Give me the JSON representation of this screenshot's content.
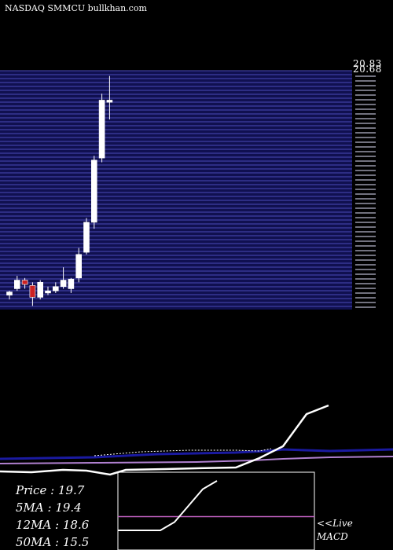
{
  "header": {
    "title": "NASDAQ SMMCU bullkhan.com"
  },
  "price_labels": {
    "top1": "20.83",
    "top2": "20.68"
  },
  "stats": {
    "price": "Price   :  19.7",
    "ma5": "5MA : 19.4",
    "ma12": "12MA : 18.6",
    "ma50": "50MA : 15.5"
  },
  "macd_panel": {
    "live": "<<Live",
    "label": "MACD"
  },
  "colors": {
    "background": "#000000",
    "band": "#101050",
    "band_line": "#4a4ab8",
    "up_candle": "#ffffff",
    "down_candle": "#cc2222",
    "ma_blue": "#1a1aa0",
    "ma_purple": "#b080d0",
    "ma_white": "#ffffff",
    "macd_line": "#ffffff",
    "signal_line": "#c060c0"
  },
  "chart_data": {
    "type": "candlestick",
    "title": "NASDAQ SMMCU bullkhan.com",
    "ylim": [
      10,
      21
    ],
    "candles": [
      {
        "o": 10.6,
        "h": 10.8,
        "l": 10.4,
        "c": 10.75
      },
      {
        "o": 10.9,
        "h": 11.5,
        "l": 10.8,
        "c": 11.3
      },
      {
        "o": 11.3,
        "h": 11.4,
        "l": 10.9,
        "c": 11.1
      },
      {
        "o": 11.05,
        "h": 11.2,
        "l": 10.1,
        "c": 10.5
      },
      {
        "o": 10.5,
        "h": 11.3,
        "l": 10.4,
        "c": 11.2
      },
      {
        "o": 10.7,
        "h": 11.0,
        "l": 10.6,
        "c": 10.8
      },
      {
        "o": 10.8,
        "h": 11.2,
        "l": 10.7,
        "c": 11.0
      },
      {
        "o": 11.0,
        "h": 11.9,
        "l": 10.9,
        "c": 11.3
      },
      {
        "o": 10.9,
        "h": 11.4,
        "l": 10.7,
        "c": 11.35
      },
      {
        "o": 11.4,
        "h": 12.8,
        "l": 11.2,
        "c": 12.5
      },
      {
        "o": 12.6,
        "h": 14.2,
        "l": 12.5,
        "c": 14.0
      },
      {
        "o": 14.0,
        "h": 17.1,
        "l": 13.7,
        "c": 16.9
      },
      {
        "o": 17.0,
        "h": 20.0,
        "l": 16.8,
        "c": 19.7
      },
      {
        "o": 19.6,
        "h": 20.83,
        "l": 18.8,
        "c": 19.7
      }
    ],
    "moving_averages": {
      "ma5_last": 19.4,
      "ma12_last": 18.6,
      "ma50_last": 15.5
    },
    "macd": {
      "macd_line": [
        0.1,
        0.1,
        0.1,
        0.1,
        0.25,
        0.55,
        0.85,
        1.0
      ],
      "signal_line": [
        0.35,
        0.35,
        0.35,
        0.35,
        0.35,
        0.35,
        0.35,
        0.35
      ]
    }
  }
}
